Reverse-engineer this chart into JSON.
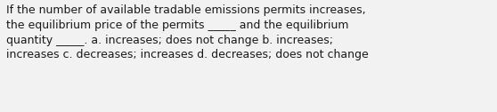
{
  "text": "If the number of available tradable emissions permits increases,\nthe equilibrium price of the permits _____ and the equilibrium\nquantity _____. a. increases; does not change b. increases;\nincreases c. decreases; increases d. decreases; does not change",
  "background_color": "#f2f2f2",
  "text_color": "#1a1a1a",
  "font_size": 9.0,
  "fig_width": 5.58,
  "fig_height": 1.26,
  "dpi": 100
}
